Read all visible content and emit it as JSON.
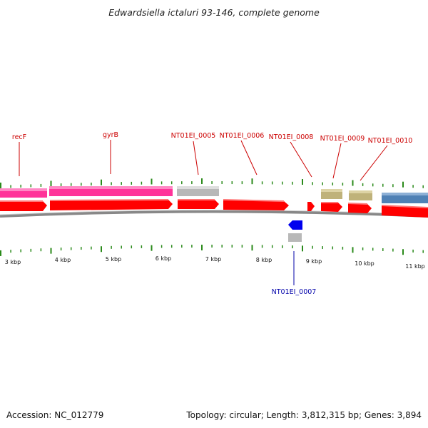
{
  "title": "Edwardsiella ictaluri 93-146, complete genome",
  "footer": {
    "accession": "Accession: NC_012779",
    "summary": "Topology: circular; Length: 3,812,315 bp; Genes: 3,894"
  },
  "colors": {
    "forward_cds": "#ff0000",
    "reverse_cds": "#0000ff",
    "highlight_gene": "#ff3399",
    "other_gene": "#b8b8b8",
    "khaki_gene": "#bfb27a",
    "blue_gene": "#4f81b5",
    "tick": "#2a8a1a",
    "label_forward": "#cc0000",
    "label_reverse": "#0000aa"
  },
  "scale_labels": [
    "3 kbp",
    "4 kbp",
    "5 kbp",
    "6 kbp",
    "7 kbp",
    "8 kbp",
    "9 kbp",
    "10 kbp",
    "11 kbp"
  ],
  "gene_labels_top": [
    "recF",
    "gyrB",
    "NT01EI_0005",
    "NT01EI_0006",
    "NT01EI_0008",
    "NT01EI_0009",
    "NT01EI_0010"
  ],
  "gene_labels_bottom": [
    "NT01EI_0007"
  ]
}
